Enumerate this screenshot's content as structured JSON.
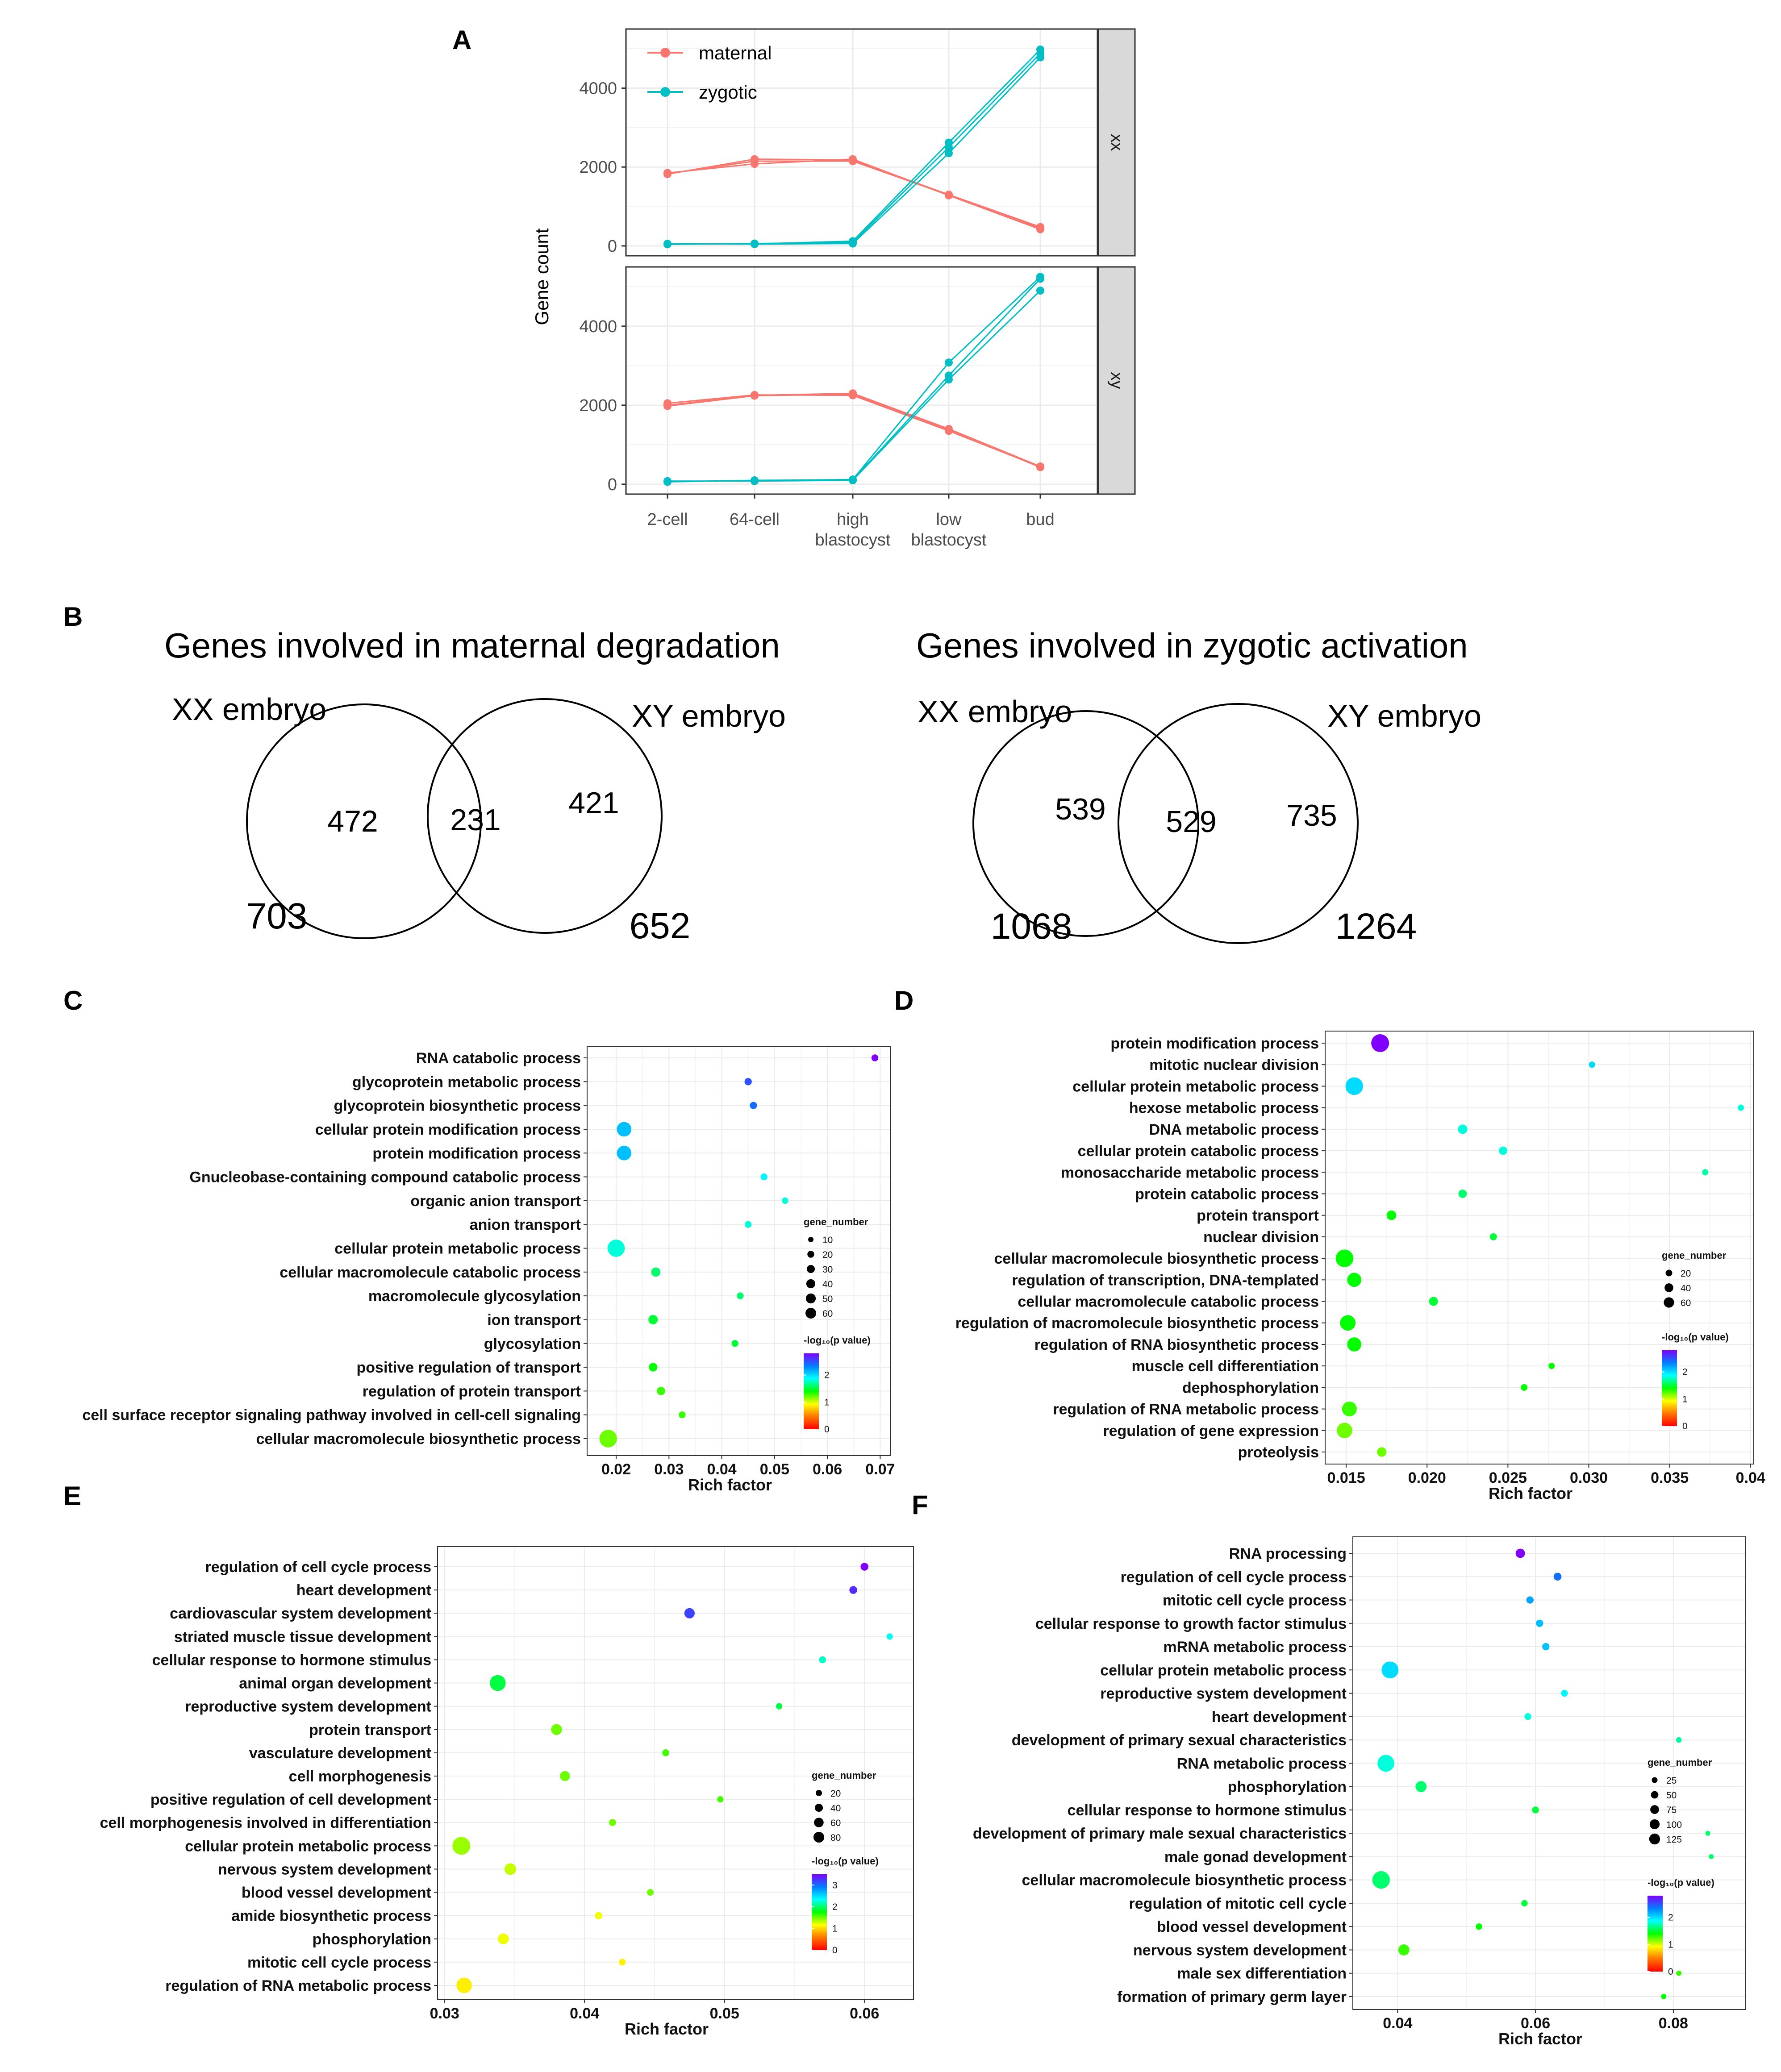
{
  "colors": {
    "maternal": "#f8766d",
    "zygotic": "#00bfc4",
    "strip": "#d9d9d9",
    "grid": "#ebebeb",
    "gradient": [
      "#ff0000",
      "#ff8000",
      "#ffff00",
      "#00ff00",
      "#00ffff",
      "#0080ff",
      "#8000ff"
    ]
  },
  "panel_labels": [
    "A",
    "B",
    "C",
    "D",
    "E",
    "F"
  ],
  "chart_data": [
    {
      "id": "A",
      "type": "line",
      "ylabel": "Gene count",
      "xlabel": "",
      "categories": [
        "2-cell",
        "64-cell",
        "high blastocyst",
        "low blastocyst",
        "bud"
      ],
      "category_lines": [
        [
          "2-cell"
        ],
        [
          "64-cell"
        ],
        [
          "high",
          "blastocyst"
        ],
        [
          "low",
          "blastocyst"
        ],
        [
          "bud"
        ]
      ],
      "yticks": [
        0,
        2000,
        4000
      ],
      "ylim": [
        -250,
        5500
      ],
      "legend": [
        "maternal",
        "zygotic"
      ],
      "facets": [
        {
          "strip": "xx",
          "series": [
            {
              "name": "maternal",
              "values": [
                1820,
                2200,
                2180,
                1300,
                480
              ]
            },
            {
              "name": "maternal",
              "values": [
                1850,
                2080,
                2200,
                1280,
                420
              ]
            },
            {
              "name": "maternal",
              "values": [
                1830,
                2150,
                2150,
                1290,
                450
              ]
            },
            {
              "name": "zygotic",
              "values": [
                50,
                50,
                120,
                2620,
                4980
              ]
            },
            {
              "name": "zygotic",
              "values": [
                55,
                45,
                60,
                2350,
                4780
              ]
            },
            {
              "name": "zygotic",
              "values": [
                40,
                60,
                90,
                2500,
                4880
              ]
            }
          ]
        },
        {
          "strip": "xy",
          "series": [
            {
              "name": "maternal",
              "values": [
                2000,
                2250,
                2300,
                1400,
                450
              ]
            },
            {
              "name": "maternal",
              "values": [
                2050,
                2260,
                2250,
                1350,
                440
              ]
            },
            {
              "name": "maternal",
              "values": [
                1980,
                2240,
                2280,
                1380,
                430
              ]
            },
            {
              "name": "zygotic",
              "values": [
                70,
                90,
                120,
                3080,
                5250
              ]
            },
            {
              "name": "zygotic",
              "values": [
                80,
                80,
                100,
                2650,
                4900
              ]
            },
            {
              "name": "zygotic",
              "values": [
                60,
                100,
                110,
                2750,
                5200
              ]
            }
          ]
        }
      ]
    },
    {
      "id": "C",
      "type": "scatter",
      "xlabel": "Rich factor",
      "xticks": [
        0.02,
        0.03,
        0.04,
        0.05,
        0.06,
        0.07
      ],
      "xtick_labels": [
        "0.02",
        "0.03",
        "0.04",
        "0.05",
        "0.06",
        "0.07"
      ],
      "xlim": [
        0.0145,
        0.072
      ],
      "size_legend": {
        "title": "gene_number",
        "values": [
          10,
          20,
          30,
          40,
          50,
          60
        ],
        "min": 5,
        "max": 65
      },
      "color_legend": {
        "title": "-log₁₀(p value)",
        "ticks": [
          0,
          1,
          2
        ],
        "max": 2.8
      },
      "terms": [
        {
          "name": "RNA catabolic process",
          "x": 0.069,
          "size": 5,
          "p": 2.8
        },
        {
          "name": "glycoprotein metabolic process",
          "x": 0.045,
          "size": 6,
          "p": 2.5
        },
        {
          "name": "glycoprotein biosynthetic process",
          "x": 0.046,
          "size": 6,
          "p": 2.4
        },
        {
          "name": "cellular protein modification process",
          "x": 0.0215,
          "size": 40,
          "p": 2.1
        },
        {
          "name": "protein modification process",
          "x": 0.0215,
          "size": 40,
          "p": 2.1
        },
        {
          "name": "Gnucleobase-containing compound catabolic process",
          "x": 0.048,
          "size": 5,
          "p": 1.9
        },
        {
          "name": "organic anion transport",
          "x": 0.052,
          "size": 4,
          "p": 1.8
        },
        {
          "name": "anion transport",
          "x": 0.045,
          "size": 5,
          "p": 1.8
        },
        {
          "name": "cellular protein metabolic process",
          "x": 0.02,
          "size": 60,
          "p": 1.8
        },
        {
          "name": "cellular macromolecule catabolic process",
          "x": 0.0275,
          "size": 12,
          "p": 1.6
        },
        {
          "name": "macromolecule glycosylation",
          "x": 0.0435,
          "size": 5,
          "p": 1.6
        },
        {
          "name": "ion transport",
          "x": 0.027,
          "size": 13,
          "p": 1.5
        },
        {
          "name": "glycosylation",
          "x": 0.0425,
          "size": 5,
          "p": 1.5
        },
        {
          "name": "positive regulation of transport",
          "x": 0.027,
          "size": 10,
          "p": 1.4
        },
        {
          "name": "regulation of protein transport",
          "x": 0.0285,
          "size": 9,
          "p": 1.3
        },
        {
          "name": "cell surface receptor signaling pathway involved in cell-cell signaling",
          "x": 0.0325,
          "size": 5,
          "p": 1.3
        },
        {
          "name": "cellular macromolecule biosynthetic process",
          "x": 0.0185,
          "size": 63,
          "p": 1.2
        }
      ]
    },
    {
      "id": "D",
      "type": "scatter",
      "xlabel": "Rich factor",
      "xticks": [
        0.015,
        0.02,
        0.025,
        0.03,
        0.035,
        0.04
      ],
      "xtick_labels": [
        "0.015",
        "0.020",
        "0.025",
        "0.030",
        "0.035",
        "0.04"
      ],
      "xlim": [
        0.0137,
        0.0402
      ],
      "size_legend": {
        "title": "gene_number",
        "values": [
          20,
          40,
          60
        ],
        "min": 5,
        "max": 70
      },
      "color_legend": {
        "title": "-log₁₀(p value)",
        "ticks": [
          0,
          1,
          2
        ],
        "max": 2.8
      },
      "terms": [
        {
          "name": "protein modification process",
          "x": 0.0171,
          "size": 70,
          "p": 2.8
        },
        {
          "name": "mitotic nuclear division",
          "x": 0.0302,
          "size": 4,
          "p": 2.0
        },
        {
          "name": "cellular protein metabolic process",
          "x": 0.0155,
          "size": 68,
          "p": 2.0
        },
        {
          "name": "hexose metabolic process",
          "x": 0.0394,
          "size": 4,
          "p": 1.8
        },
        {
          "name": "DNA metabolic process",
          "x": 0.0222,
          "size": 14,
          "p": 1.8
        },
        {
          "name": "cellular protein catabolic process",
          "x": 0.0247,
          "size": 10,
          "p": 1.8
        },
        {
          "name": "monosaccharide metabolic process",
          "x": 0.0372,
          "size": 4,
          "p": 1.7
        },
        {
          "name": "protein catabolic process",
          "x": 0.0222,
          "size": 10,
          "p": 1.6
        },
        {
          "name": "protein transport",
          "x": 0.0178,
          "size": 15,
          "p": 1.4
        },
        {
          "name": "nuclear division",
          "x": 0.0241,
          "size": 6,
          "p": 1.5
        },
        {
          "name": "cellular macromolecule biosynthetic process",
          "x": 0.0149,
          "size": 68,
          "p": 1.4
        },
        {
          "name": "regulation of transcription, DNA-templated",
          "x": 0.0155,
          "size": 40,
          "p": 1.4
        },
        {
          "name": "cellular macromolecule catabolic process",
          "x": 0.0204,
          "size": 12,
          "p": 1.5
        },
        {
          "name": "regulation of macromolecule biosynthetic process",
          "x": 0.0151,
          "size": 50,
          "p": 1.4
        },
        {
          "name": "regulation of RNA biosynthetic process",
          "x": 0.0155,
          "size": 40,
          "p": 1.4
        },
        {
          "name": "muscle cell differentiation",
          "x": 0.0277,
          "size": 4,
          "p": 1.4
        },
        {
          "name": "dephosphorylation",
          "x": 0.026,
          "size": 5,
          "p": 1.4
        },
        {
          "name": "regulation of RNA metabolic process",
          "x": 0.0152,
          "size": 45,
          "p": 1.3
        },
        {
          "name": "regulation of gene expression",
          "x": 0.0149,
          "size": 50,
          "p": 1.2
        },
        {
          "name": "proteolysis",
          "x": 0.0172,
          "size": 14,
          "p": 1.2
        }
      ]
    },
    {
      "id": "E",
      "type": "scatter",
      "xlabel": "Rich factor",
      "xticks": [
        0.03,
        0.04,
        0.05,
        0.06
      ],
      "xtick_labels": [
        "0.03",
        "0.04",
        "0.05",
        "0.06"
      ],
      "xlim": [
        0.0295,
        0.0635
      ],
      "size_legend": {
        "title": "gene_number",
        "values": [
          20,
          40,
          60,
          80
        ],
        "min": 5,
        "max": 85
      },
      "color_legend": {
        "title": "-log₁₀(p value)",
        "ticks": [
          0,
          1,
          2,
          3
        ],
        "max": 3.5
      },
      "terms": [
        {
          "name": "regulation of cell cycle process",
          "x": 0.06,
          "size": 10,
          "p": 3.5
        },
        {
          "name": "heart development",
          "x": 0.0592,
          "size": 10,
          "p": 3.3
        },
        {
          "name": "cardiovascular system development",
          "x": 0.0475,
          "size": 22,
          "p": 3.2
        },
        {
          "name": "striated muscle tissue development",
          "x": 0.0618,
          "size": 5,
          "p": 2.3
        },
        {
          "name": "cellular response to hormone stimulus",
          "x": 0.057,
          "size": 7,
          "p": 2.2
        },
        {
          "name": "animal organ development",
          "x": 0.0338,
          "size": 65,
          "p": 1.9
        },
        {
          "name": "reproductive system development",
          "x": 0.0539,
          "size": 5,
          "p": 1.9
        },
        {
          "name": "protein transport",
          "x": 0.038,
          "size": 25,
          "p": 1.5
        },
        {
          "name": "vasculature development",
          "x": 0.0458,
          "size": 7,
          "p": 1.6
        },
        {
          "name": "cell morphogenesis",
          "x": 0.0386,
          "size": 20,
          "p": 1.5
        },
        {
          "name": "positive regulation of cell development",
          "x": 0.0497,
          "size": 5,
          "p": 1.6
        },
        {
          "name": "cell morphogenesis involved in differentiation",
          "x": 0.042,
          "size": 7,
          "p": 1.5
        },
        {
          "name": "cellular protein metabolic process",
          "x": 0.0312,
          "size": 85,
          "p": 1.4
        },
        {
          "name": "nervous system development",
          "x": 0.0347,
          "size": 30,
          "p": 1.3
        },
        {
          "name": "blood vessel development",
          "x": 0.0447,
          "size": 6,
          "p": 1.5
        },
        {
          "name": "amide biosynthetic process",
          "x": 0.041,
          "size": 8,
          "p": 1.2
        },
        {
          "name": "phosphorylation",
          "x": 0.0342,
          "size": 25,
          "p": 1.2
        },
        {
          "name": "mitotic cell cycle process",
          "x": 0.0427,
          "size": 6,
          "p": 1.1
        },
        {
          "name": "regulation of RNA metabolic process",
          "x": 0.0314,
          "size": 60,
          "p": 1.1
        }
      ]
    },
    {
      "id": "F",
      "type": "scatter",
      "xlabel": "Rich factor",
      "xticks": [
        0.04,
        0.06,
        0.08
      ],
      "xtick_labels": [
        "0.04",
        "0.06",
        "0.08"
      ],
      "xlim": [
        0.0335,
        0.0905
      ],
      "size_legend": {
        "title": "gene_number",
        "values": [
          25,
          50,
          75,
          100,
          125
        ],
        "min": 5,
        "max": 130
      },
      "color_legend": {
        "title": "-log₁₀(p value)",
        "ticks": [
          0,
          1,
          2
        ],
        "max": 2.8
      },
      "terms": [
        {
          "name": "RNA processing",
          "x": 0.0578,
          "size": 25,
          "p": 2.8
        },
        {
          "name": "regulation of cell cycle process",
          "x": 0.0632,
          "size": 15,
          "p": 2.4
        },
        {
          "name": "mitotic cell cycle process",
          "x": 0.0592,
          "size": 12,
          "p": 2.2
        },
        {
          "name": "cellular response to growth factor stimulus",
          "x": 0.0606,
          "size": 12,
          "p": 2.1
        },
        {
          "name": "mRNA metabolic process",
          "x": 0.0615,
          "size": 12,
          "p": 2.1
        },
        {
          "name": "cellular protein metabolic process",
          "x": 0.0389,
          "size": 115,
          "p": 2.0
        },
        {
          "name": "reproductive system development",
          "x": 0.0642,
          "size": 10,
          "p": 1.9
        },
        {
          "name": "heart development",
          "x": 0.0589,
          "size": 10,
          "p": 1.8
        },
        {
          "name": "development of primary sexual characteristics",
          "x": 0.0808,
          "size": 5,
          "p": 1.7
        },
        {
          "name": "RNA metabolic process",
          "x": 0.0383,
          "size": 115,
          "p": 1.8
        },
        {
          "name": "phosphorylation",
          "x": 0.0434,
          "size": 40,
          "p": 1.6
        },
        {
          "name": "cellular response to hormone stimulus",
          "x": 0.06,
          "size": 10,
          "p": 1.5
        },
        {
          "name": "development of primary male sexual characteristics",
          "x": 0.085,
          "size": 3,
          "p": 1.6
        },
        {
          "name": "male gonad development",
          "x": 0.0855,
          "size": 3,
          "p": 1.6
        },
        {
          "name": "cellular macromolecule biosynthetic process",
          "x": 0.0376,
          "size": 125,
          "p": 1.6
        },
        {
          "name": "regulation of mitotic cell cycle",
          "x": 0.0584,
          "size": 8,
          "p": 1.5
        },
        {
          "name": "blood vessel development",
          "x": 0.0518,
          "size": 8,
          "p": 1.4
        },
        {
          "name": "nervous system development",
          "x": 0.0409,
          "size": 40,
          "p": 1.3
        },
        {
          "name": "male sex differentiation",
          "x": 0.0808,
          "size": 4,
          "p": 1.3
        },
        {
          "name": "formation of primary germ layer",
          "x": 0.0786,
          "size": 4,
          "p": 1.4
        }
      ]
    }
  ],
  "venn": [
    {
      "title": "Genes involved in maternal degradation",
      "left_label": "XX embryo",
      "right_label": "XY embryo",
      "left_only": "472",
      "overlap": "231",
      "right_only": "421",
      "left_total": "703",
      "right_total": "652"
    },
    {
      "title": "Genes involved in zygotic activation",
      "left_label": "XX embryo",
      "right_label": "XY embryo",
      "left_only": "539",
      "overlap": "529",
      "right_only": "735",
      "left_total": "1068",
      "right_total": "1264"
    }
  ]
}
